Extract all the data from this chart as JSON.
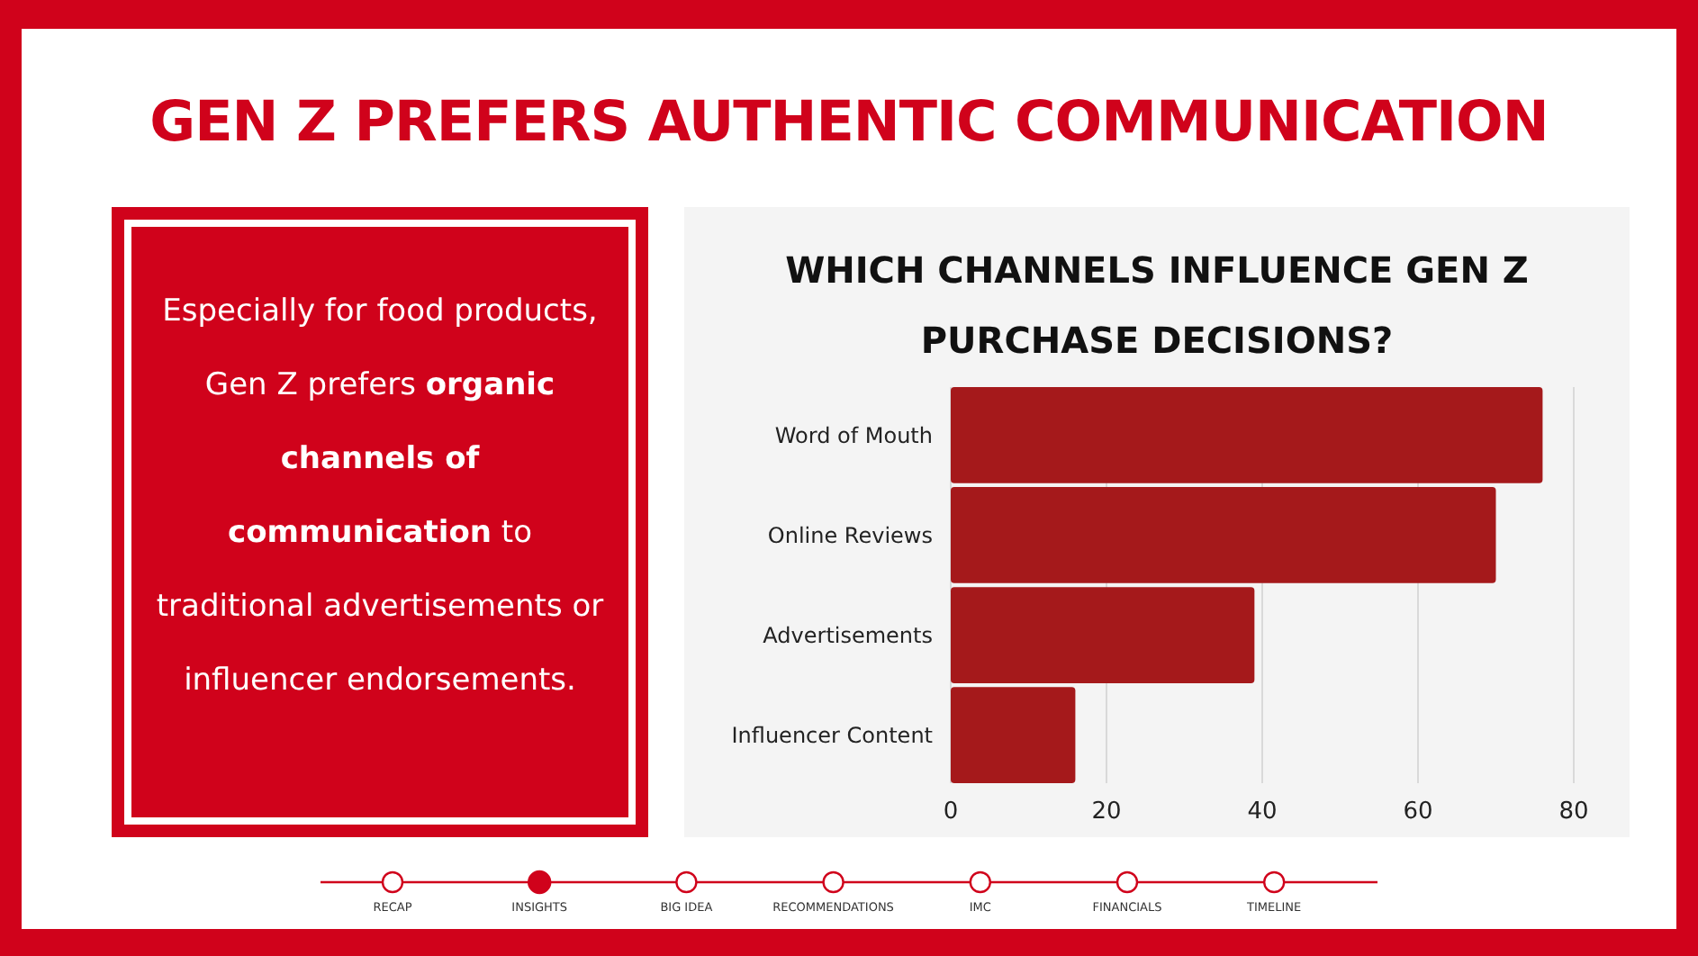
{
  "chart_data": {
    "type": "bar",
    "orientation": "horizontal",
    "title": "GEN Z PREFERS AUTHENTIC COMMUNICATION",
    "subtitle": "WHICH CHANNELS INFLUENCE GEN Z PURCHASE DECISIONS?",
    "categories": [
      "Word of Mouth",
      "Online Reviews",
      "Advertisements",
      "Influencer Content"
    ],
    "values": [
      76,
      70,
      39,
      16
    ],
    "color": "#a5191b",
    "xlim": [
      0,
      80
    ],
    "xticks": [
      0,
      20,
      40,
      60,
      80
    ],
    "grid": "x",
    "annotations": [
      "Especially for food products, Gen Z prefers",
      "organic channels of communication",
      "to traditional advertisements or influencer endorsements.",
      "RECAP",
      "INSIGHTS",
      "BIG IDEA",
      "RECOMMENDATIONS",
      "IMC",
      "FINANCIALS",
      "TIMELINE"
    ]
  }
}
